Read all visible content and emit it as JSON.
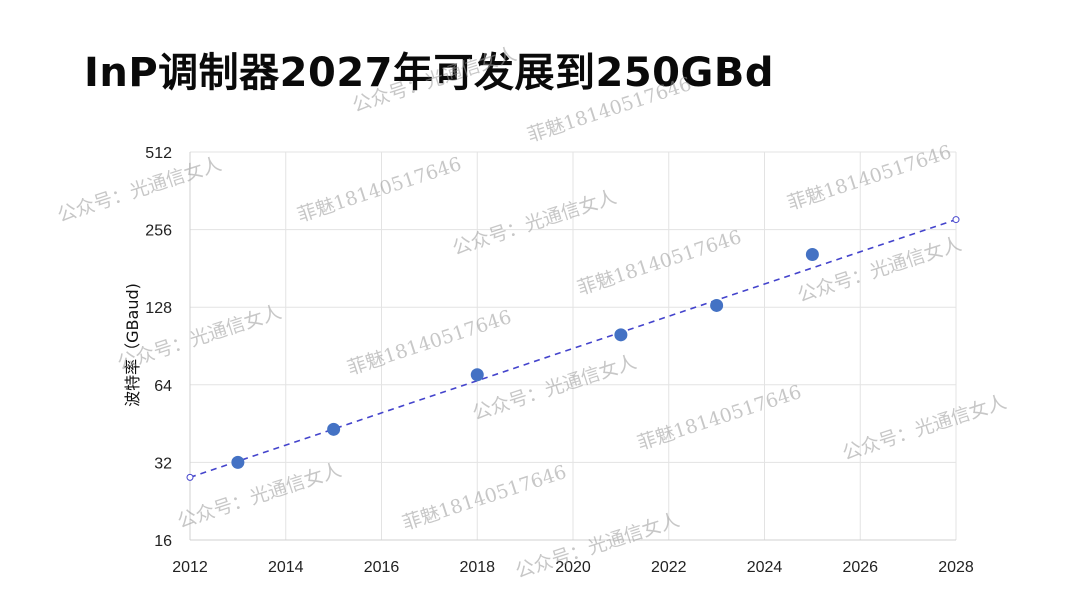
{
  "page": {
    "title": "InP调制器2027年可发展到250GBd"
  },
  "chart_data": {
    "type": "scatter",
    "title": "",
    "xlabel": "",
    "ylabel": "波特率（GBaud)",
    "x_ticks": [
      2012,
      2014,
      2016,
      2018,
      2020,
      2022,
      2024,
      2026,
      2028
    ],
    "y_ticks": [
      16,
      32,
      64,
      128,
      256,
      512
    ],
    "y_scale": "log2",
    "xlim": [
      2012,
      2028
    ],
    "ylim": [
      16,
      512
    ],
    "grid": true,
    "series": [
      {
        "type": "scatter",
        "x": [
          2013,
          2015,
          2018,
          2021,
          2023,
          2025
        ],
        "y": [
          32,
          43,
          70,
          100,
          130,
          205
        ],
        "color": "#4472c4"
      },
      {
        "type": "line",
        "style": "dashed",
        "x": [
          2012,
          2028
        ],
        "y": [
          28,
          280
        ],
        "color": "#4444cc"
      }
    ]
  },
  "watermarks": [
    "公众号：光通信女人",
    "菲魅18140517646"
  ]
}
